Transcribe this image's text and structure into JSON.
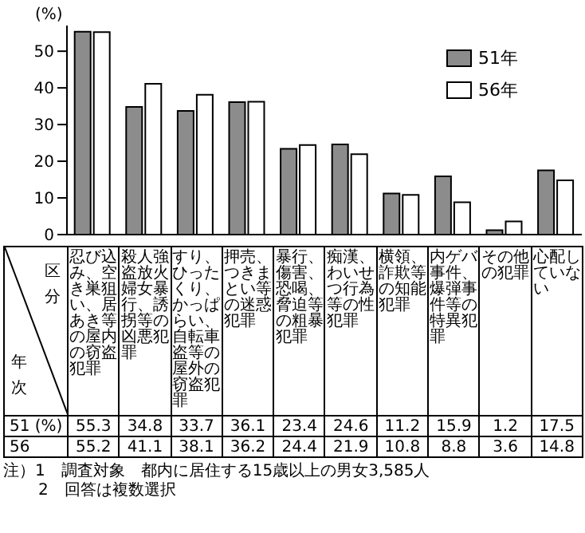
{
  "chart_data": {
    "type": "bar",
    "ylabel": "(%)",
    "categories": [
      "忍び込み、空き巣狙い、居あき等の屋内の窃盗犯罪",
      "殺人強盗放火婦女暴行、誘拐等の凶悪犯罪",
      "すり、ひったくり、かっぱらい、自転車盗等の屋外の窃盗犯罪",
      "押売、つきまとい等の迷惑犯罪",
      "暴行、傷害、恐喝、脅迫等の粗暴犯罪",
      "痴漢、わいせつ行為等の性犯罪",
      "横領、詐欺等の知能犯罪",
      "内ゲバ事件、爆弾事件等の特異犯罪",
      "その他の犯罪",
      "心配していない"
    ],
    "series": [
      {
        "name": "51年",
        "color": "#8c8c8c",
        "values": [
          55.3,
          34.8,
          33.7,
          36.1,
          23.4,
          24.6,
          11.2,
          15.9,
          1.2,
          17.5
        ]
      },
      {
        "name": "56年",
        "color": "#ffffff",
        "values": [
          55.2,
          41.1,
          38.1,
          36.2,
          24.4,
          21.9,
          10.8,
          8.8,
          3.6,
          14.8
        ]
      }
    ],
    "ylim": [
      0,
      57
    ],
    "yticks": [
      0,
      10,
      20,
      30,
      40,
      50
    ],
    "legend": "top right",
    "data_labels": true,
    "annotations": [
      "区分",
      "年次",
      "51 (%)",
      "56",
      "注）1　調査対象　都内に居住する15歳以上の男女3,585人",
      "2　回答は複数選択"
    ]
  }
}
